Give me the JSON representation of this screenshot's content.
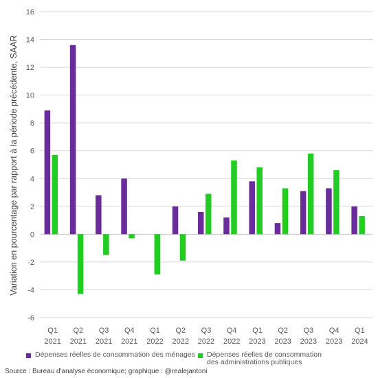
{
  "colors": {
    "menages": "#6a2c9a",
    "admin": "#22cc22",
    "grid": "#d9d9d9",
    "axis": "#bfbfbf"
  },
  "chart_data": {
    "type": "bar",
    "ylabel": "Variation en pourcentage par rapport à la période précédente, SAAR",
    "ylim": [
      -6,
      16
    ],
    "yticks": [
      16,
      14,
      12,
      10,
      8,
      6,
      4,
      2,
      0,
      -2,
      -4,
      -6
    ],
    "grid": true,
    "legend_position": "bottom",
    "categories": [
      {
        "quarter": "Q1",
        "year": "2021"
      },
      {
        "quarter": "Q2",
        "year": "2021"
      },
      {
        "quarter": "Q3",
        "year": "2021"
      },
      {
        "quarter": "Q4",
        "year": "2021"
      },
      {
        "quarter": "Q1",
        "year": "2022"
      },
      {
        "quarter": "Q2",
        "year": "2022"
      },
      {
        "quarter": "Q3",
        "year": "2022"
      },
      {
        "quarter": "Q4",
        "year": "2022"
      },
      {
        "quarter": "Q1",
        "year": "2023"
      },
      {
        "quarter": "Q2",
        "year": "2023"
      },
      {
        "quarter": "Q3",
        "year": "2023"
      },
      {
        "quarter": "Q4",
        "year": "2023"
      },
      {
        "quarter": "Q1",
        "year": "2024"
      }
    ],
    "series": [
      {
        "name": "Dépenses réelles de consommation des ménages",
        "color": "#6a2c9a",
        "values": [
          8.9,
          13.6,
          2.8,
          4.0,
          0.0,
          2.0,
          1.6,
          1.2,
          3.8,
          0.8,
          3.1,
          3.3,
          2.0
        ]
      },
      {
        "name": "Dépenses réelles de consommation des administrations publiques",
        "color": "#22cc22",
        "values": [
          5.7,
          -4.3,
          -1.5,
          -0.3,
          -2.9,
          -1.9,
          2.9,
          5.3,
          4.8,
          3.3,
          5.8,
          4.6,
          1.3
        ]
      }
    ]
  },
  "legend": {
    "item1": "Dépenses réelles de consommation des ménages",
    "item2_line1": "Dépenses réelles de consommation",
    "item2_line2": "des administrations publiques"
  },
  "source": "Source : Bureau d'analyse économique; graphique : @realejantoni"
}
